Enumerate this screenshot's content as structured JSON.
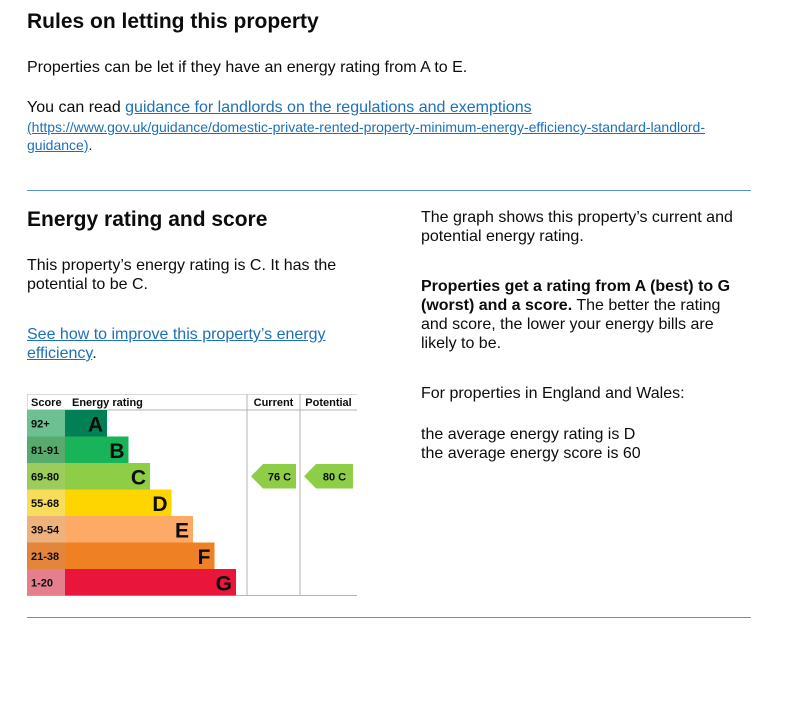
{
  "rules_section": {
    "title": "Rules on letting this property",
    "intro": "Properties can be let if they have an energy rating from A to E.",
    "read_prefix": "You can read ",
    "guidance_link": "guidance for landlords on the regulations and exemptions",
    "guidance_url_text": "(https://www.gov.uk/guidance/domestic-private-rented-property-minimum-energy-efficiency-standard-landlord-guidance)",
    "guidance_url_line1": "(https://www.gov.uk/guidance/domestic-private-rented-property-minimum-energy-efficiency-standard-landlord-",
    "guidance_url_line2": "guidance)",
    "guidance_suffix": "."
  },
  "energy_section": {
    "title": "Energy rating and score",
    "summary_line1": "This property’s energy rating is C. It has the",
    "summary_line2": "potential to be C.",
    "improve_link_line1": "See how to improve this property’s energy",
    "improve_link_line2": "efficiency",
    "improve_suffix": ".",
    "graph_desc_line1": "The graph shows this property’s current and",
    "graph_desc_line2": "potential energy rating.",
    "ratings_bold_line1": "Properties get a rating from A (best) to G",
    "ratings_bold_line2": "(worst) and a score.",
    "ratings_rest_line2": " The better the rating",
    "ratings_rest_line3": "and score, the lower your energy bills are",
    "ratings_rest_line4": "likely to be.",
    "regional_intro": "For properties in England and Wales:",
    "average_rating": "the average energy rating is D",
    "average_score": "the average energy score is 60"
  },
  "chart_data": {
    "type": "table",
    "headers": {
      "score": "Score",
      "rating": "Energy rating",
      "current": "Current",
      "potential": "Potential"
    },
    "bands": [
      {
        "score": "92+",
        "letter": "A",
        "color": "#008054",
        "bg": "#6cc091"
      },
      {
        "score": "81-91",
        "letter": "B",
        "color": "#19b459",
        "bg": "#58ab6e"
      },
      {
        "score": "69-80",
        "letter": "C",
        "color": "#8dce46",
        "bg": "#9dcb5c"
      },
      {
        "score": "55-68",
        "letter": "D",
        "color": "#ffd500",
        "bg": "#f8dc5c"
      },
      {
        "score": "39-54",
        "letter": "E",
        "color": "#fcaa65",
        "bg": "#f0b27c"
      },
      {
        "score": "21-38",
        "letter": "F",
        "color": "#ef8023",
        "bg": "#e4853c"
      },
      {
        "score": "1-20",
        "letter": "G",
        "color": "#e9153b",
        "bg": "#e57f8e"
      }
    ],
    "current": {
      "score": 76,
      "letter": "C",
      "label": "76  C",
      "band": "C"
    },
    "potential": {
      "score": 80,
      "letter": "C",
      "label": "80  C",
      "band": "C"
    }
  }
}
